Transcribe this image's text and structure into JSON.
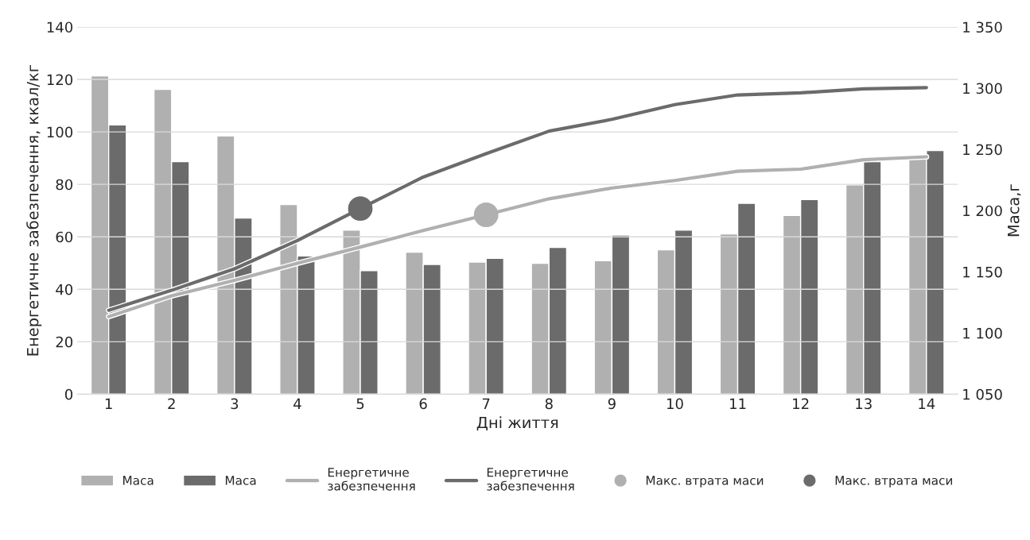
{
  "chart_data": {
    "type": "bar",
    "xlabel": "Дні життя",
    "ylabel": "Енергетичне забезпечення, ккал/кг",
    "y2label": "Маса,г",
    "categories": [
      "1",
      "2",
      "3",
      "4",
      "5",
      "6",
      "7",
      "8",
      "9",
      "10",
      "11",
      "12",
      "13",
      "14"
    ],
    "series": [
      {
        "name": "Маса",
        "axis": "y2",
        "color": "#b0b0b0",
        "values": [
          1310,
          1299,
          1261,
          1205,
          1184,
          1166,
          1158,
          1157,
          1159,
          1168,
          1181,
          1196,
          1221,
          1244
        ]
      },
      {
        "name": "Маса",
        "axis": "y2",
        "color": "#6b6b6b",
        "values": [
          1270,
          1240,
          1194,
          1163,
          1151,
          1156,
          1161,
          1170,
          1180,
          1184,
          1206,
          1209,
          1240,
          1249
        ]
      },
      {
        "name": "Енергетичне\nзабезпечення",
        "type": "line",
        "color": "#b0b0b0",
        "values": [
          29.6,
          37.5,
          43.4,
          49.9,
          56.1,
          62.4,
          68.4,
          74.5,
          78.6,
          81.5,
          85.0,
          85.8,
          89.4,
          90.5
        ]
      },
      {
        "name": "Енергетичне\nзабезпечення",
        "type": "line",
        "color": "#6b6b6b",
        "values": [
          32.0,
          39.6,
          47.8,
          58.6,
          70.8,
          82.8,
          91.7,
          100.3,
          104.8,
          110.4,
          114.1,
          114.9,
          116.4,
          116.9
        ]
      },
      {
        "name": "Макс. втрата маси",
        "type": "scatter",
        "marker": "circle",
        "color": "#b0b0b0",
        "x": [
          "7"
        ],
        "values": [
          68.4
        ]
      },
      {
        "name": "Макс. втрата маси",
        "type": "scatter",
        "marker": "circle",
        "color": "#6b6b6b",
        "x": [
          "5"
        ],
        "values": [
          70.8
        ]
      }
    ],
    "ylim": [
      0,
      140
    ],
    "yticks": [
      0,
      20,
      40,
      60,
      80,
      100,
      120,
      140
    ],
    "y2lim": [
      1050,
      1350
    ],
    "y2ticks": [
      {
        "value": 1050,
        "label": "1 050"
      },
      {
        "value": 1100,
        "label": "1 100"
      },
      {
        "value": 1150,
        "label": "1 150"
      },
      {
        "value": 1200,
        "label": "1 200"
      },
      {
        "value": 1250,
        "label": "1 250"
      },
      {
        "value": 1300,
        "label": "1 300"
      },
      {
        "value": 1350,
        "label": "1 350"
      }
    ],
    "grid": "y",
    "legend": "bottom"
  }
}
